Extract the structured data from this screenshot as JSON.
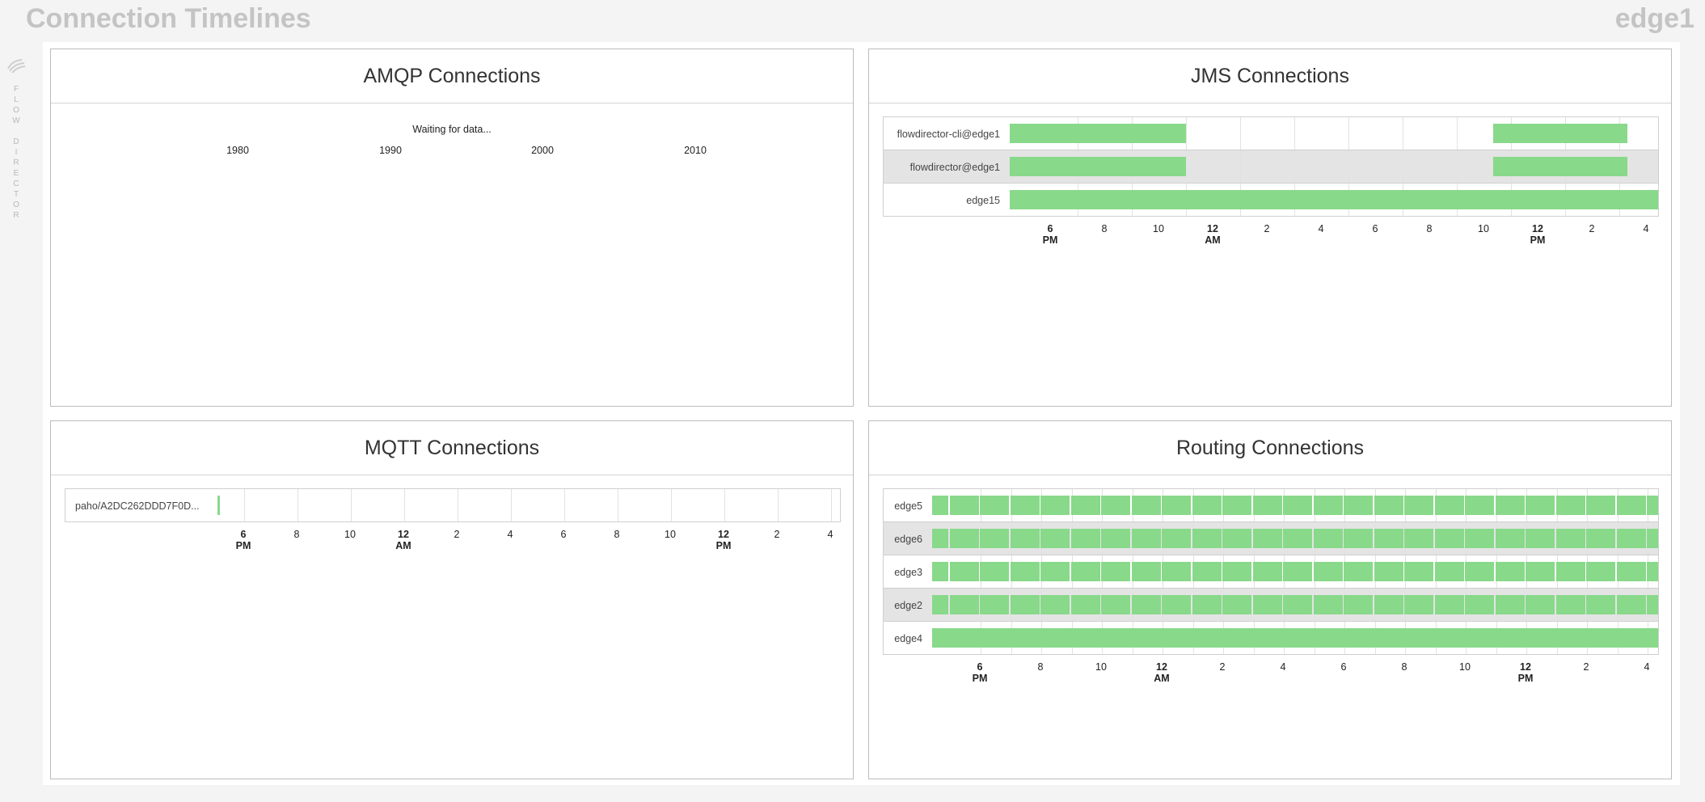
{
  "page": {
    "title": "Connection Timelines",
    "node": "edge1"
  },
  "sidebar": {
    "brand_letters": [
      "F",
      "L",
      "O",
      "W",
      "",
      "D",
      "I",
      "R",
      "E",
      "C",
      "T",
      "O",
      "R"
    ],
    "logo_icon": "flow-director-logo-icon"
  },
  "colors": {
    "bar": "#88d98a",
    "alt_row": "#e4e4e4",
    "title": "#c4c4c4"
  },
  "amqp": {
    "title": "AMQP Connections",
    "status": "Waiting for data...",
    "years": [
      "1980",
      "1990",
      "2000",
      "2010"
    ]
  },
  "jms": {
    "title": "JMS Connections",
    "rows": [
      {
        "label": "flowdirector-cli@edge1"
      },
      {
        "label": "flowdirector@edge1"
      },
      {
        "label": "edge15"
      }
    ],
    "ticks": [
      {
        "top": "6",
        "bottom": "PM",
        "major": true
      },
      {
        "top": "8"
      },
      {
        "top": "10"
      },
      {
        "top": "12",
        "bottom": "AM",
        "major": true
      },
      {
        "top": "2"
      },
      {
        "top": "4"
      },
      {
        "top": "6"
      },
      {
        "top": "8"
      },
      {
        "top": "10"
      },
      {
        "top": "12",
        "bottom": "PM",
        "major": true
      },
      {
        "top": "2"
      },
      {
        "top": "4"
      }
    ]
  },
  "mqtt": {
    "title": "MQTT Connections",
    "rows": [
      {
        "label": "paho/A2DC262DDD7F0D..."
      }
    ],
    "ticks": [
      {
        "top": "6",
        "bottom": "PM",
        "major": true
      },
      {
        "top": "8"
      },
      {
        "top": "10"
      },
      {
        "top": "12",
        "bottom": "AM",
        "major": true
      },
      {
        "top": "2"
      },
      {
        "top": "4"
      },
      {
        "top": "6"
      },
      {
        "top": "8"
      },
      {
        "top": "10"
      },
      {
        "top": "12",
        "bottom": "PM",
        "major": true
      },
      {
        "top": "2"
      },
      {
        "top": "4"
      }
    ]
  },
  "routing": {
    "title": "Routing Connections",
    "rows": [
      {
        "label": "edge5"
      },
      {
        "label": "edge6"
      },
      {
        "label": "edge3"
      },
      {
        "label": "edge2"
      },
      {
        "label": "edge4"
      }
    ],
    "ticks": [
      {
        "top": "6",
        "bottom": "PM",
        "major": true
      },
      {
        "top": "8"
      },
      {
        "top": "10"
      },
      {
        "top": "12",
        "bottom": "AM",
        "major": true
      },
      {
        "top": "2"
      },
      {
        "top": "4"
      },
      {
        "top": "6"
      },
      {
        "top": "8"
      },
      {
        "top": "10"
      },
      {
        "top": "12",
        "bottom": "PM",
        "major": true
      },
      {
        "top": "2"
      },
      {
        "top": "4"
      }
    ]
  }
}
